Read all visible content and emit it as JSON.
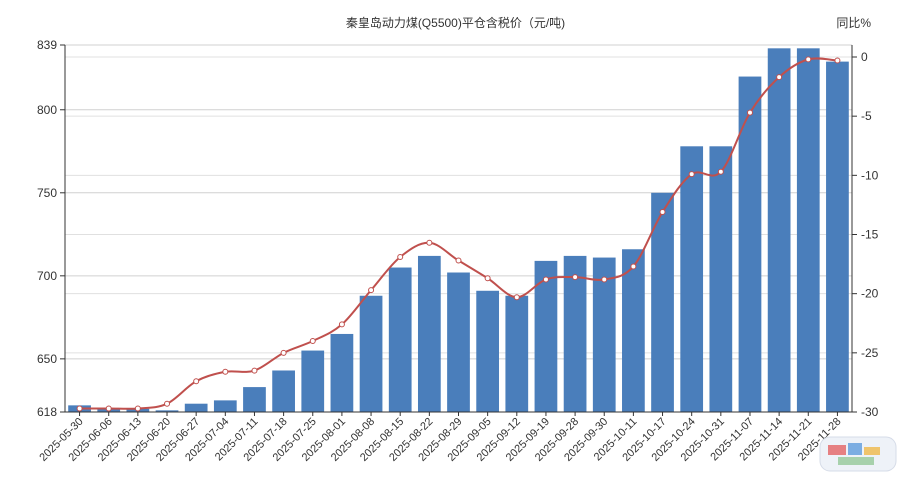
{
  "chart_data": {
    "type": "bar",
    "title": "秦皇岛动力煤(Q5500)平仓含税价（元/吨)",
    "y2label": "同比%",
    "categories": [
      "2025-05-30",
      "2025-06-06",
      "2025-06-13",
      "2025-06-20",
      "2025-06-27",
      "2025-07-04",
      "2025-07-11",
      "2025-07-18",
      "2025-07-25",
      "2025-08-01",
      "2025-08-08",
      "2025-08-15",
      "2025-08-22",
      "2025-08-29",
      "2025-09-05",
      "2025-09-12",
      "2025-09-19",
      "2025-09-28",
      "2025-09-30",
      "2025-10-11",
      "2025-10-17",
      "2025-10-24",
      "2025-10-31",
      "2025-11-07",
      "2025-11-14",
      "2025-11-21",
      "2025-11-28"
    ],
    "y_ticks": [
      618,
      650,
      700,
      750,
      800,
      839
    ],
    "ylim": [
      618,
      839
    ],
    "y2_ticks": [
      0,
      -5,
      -10,
      -15,
      -20,
      -25,
      -30
    ],
    "y2lim": [
      -30,
      0
    ],
    "series": [
      {
        "type": "bar",
        "color": "#4a7ebb",
        "values": [
          622,
          620,
          620,
          619,
          623,
          625,
          633,
          643,
          655,
          665,
          688,
          705,
          712,
          702,
          691,
          688,
          709,
          712,
          711,
          716,
          750,
          778,
          778,
          820,
          837,
          837,
          829
        ]
      },
      {
        "type": "line",
        "color": "#c0504d",
        "axis": "y2",
        "values": [
          -29.7,
          -29.7,
          -29.7,
          -29.3,
          -27.4,
          -26.6,
          -26.5,
          -25.0,
          -24.0,
          -22.6,
          -19.7,
          -16.9,
          -15.7,
          -17.2,
          -18.7,
          -20.3,
          -18.8,
          -18.6,
          -18.8,
          -17.7,
          -13.1,
          -9.9,
          -9.7,
          -4.7,
          -1.7,
          -0.2,
          -0.3
        ]
      }
    ],
    "grid": true
  }
}
